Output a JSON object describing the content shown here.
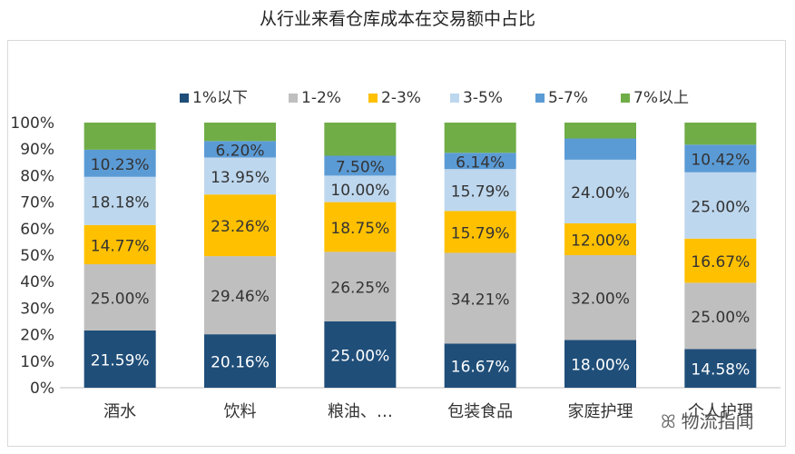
{
  "title": "从行业来看仓库成本在交易额中占比",
  "watermark": "物流指闻",
  "chart_data": {
    "type": "bar",
    "stacked": true,
    "percent_stacked": true,
    "categories": [
      "酒水",
      "饮料",
      "粮油、…",
      "包装食品",
      "家庭护理",
      "个人护理"
    ],
    "ylim": [
      0,
      100
    ],
    "yticks": [
      "0%",
      "10%",
      "20%",
      "30%",
      "40%",
      "50%",
      "60%",
      "70%",
      "80%",
      "90%",
      "100%"
    ],
    "legend_position": "top",
    "grid": false,
    "series": [
      {
        "name": "1%以下",
        "color": "#1f4e79",
        "label_color": "#ffffff",
        "values": [
          21.59,
          20.16,
          25.0,
          16.67,
          18.0,
          14.58
        ],
        "labels": [
          "21.59%",
          "20.16%",
          "25.00%",
          "16.67%",
          "18.00%",
          "14.58%"
        ]
      },
      {
        "name": "1-2%",
        "color": "#bfbfbf",
        "label_color": "#333333",
        "values": [
          25.0,
          29.46,
          26.25,
          34.21,
          32.0,
          25.0
        ],
        "labels": [
          "25.00%",
          "29.46%",
          "26.25%",
          "34.21%",
          "32.00%",
          "25.00%"
        ]
      },
      {
        "name": "2-3%",
        "color": "#ffc000",
        "label_color": "#333333",
        "values": [
          14.77,
          23.26,
          18.75,
          15.79,
          12.0,
          16.67
        ],
        "labels": [
          "14.77%",
          "23.26%",
          "18.75%",
          "15.79%",
          "12.00%",
          "16.67%"
        ]
      },
      {
        "name": "3-5%",
        "color": "#bdd7ee",
        "label_color": "#333333",
        "values": [
          18.18,
          13.95,
          10.0,
          15.79,
          24.0,
          25.0
        ],
        "labels": [
          "18.18%",
          "13.95%",
          "10.00%",
          "15.79%",
          "24.00%",
          "25.00%"
        ]
      },
      {
        "name": "5-7%",
        "color": "#5b9bd5",
        "label_color": "#333333",
        "values": [
          10.23,
          6.2,
          7.5,
          6.14,
          8.0,
          10.42
        ],
        "labels": [
          "10.23%",
          "6.20%",
          "7.50%",
          "6.14%",
          "",
          "10.42%"
        ]
      },
      {
        "name": "7%以上",
        "color": "#70ad47",
        "label_color": "#333333",
        "values": [
          10.23,
          6.97,
          12.5,
          11.4,
          6.0,
          8.33
        ],
        "labels": [
          "",
          "",
          "",
          "",
          "",
          ""
        ]
      }
    ]
  }
}
